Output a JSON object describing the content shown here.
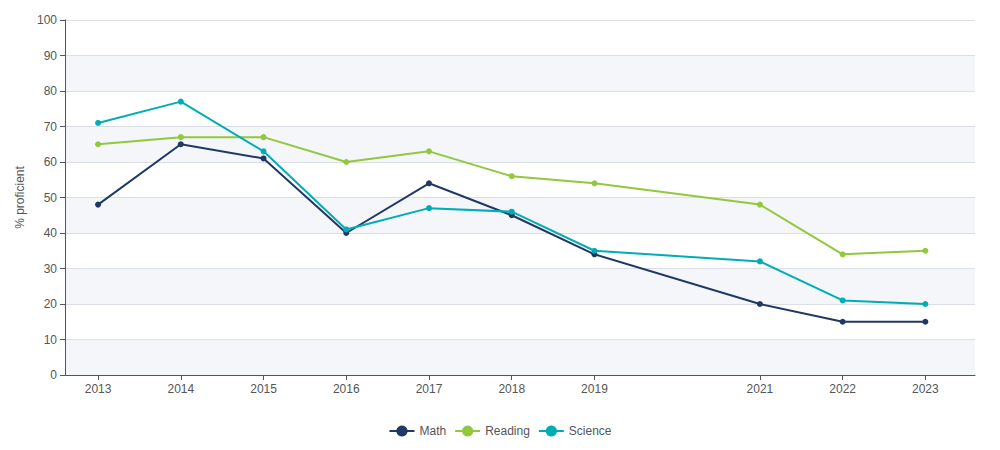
{
  "chart_data": {
    "type": "line",
    "x": [
      2013,
      2014,
      2015,
      2016,
      2017,
      2018,
      2019,
      2021,
      2022,
      2023
    ],
    "series": [
      {
        "name": "Math",
        "color": "#1f3864",
        "marker": "circle",
        "values": [
          48,
          65,
          61,
          40,
          54,
          45,
          34,
          20,
          15,
          15
        ]
      },
      {
        "name": "Reading",
        "color": "#92c83e",
        "marker": "circle",
        "values": [
          65,
          67,
          67,
          60,
          63,
          56,
          54,
          48,
          34,
          35
        ]
      },
      {
        "name": "Science",
        "color": "#00adb5",
        "marker": "circle",
        "values": [
          71,
          77,
          63,
          41,
          47,
          46,
          35,
          32,
          21,
          20
        ]
      }
    ],
    "ylabel": "% proficient",
    "xlim": [
      2012.6,
      2023.6
    ],
    "xticks": [
      2013,
      2014,
      2015,
      2016,
      2017,
      2018,
      2019,
      2021,
      2022,
      2023
    ],
    "ylim": [
      0,
      100
    ],
    "yticks": [
      0,
      10,
      20,
      30,
      40,
      50,
      60,
      70,
      80,
      90,
      100
    ],
    "grid": true,
    "legend": "bottom"
  }
}
